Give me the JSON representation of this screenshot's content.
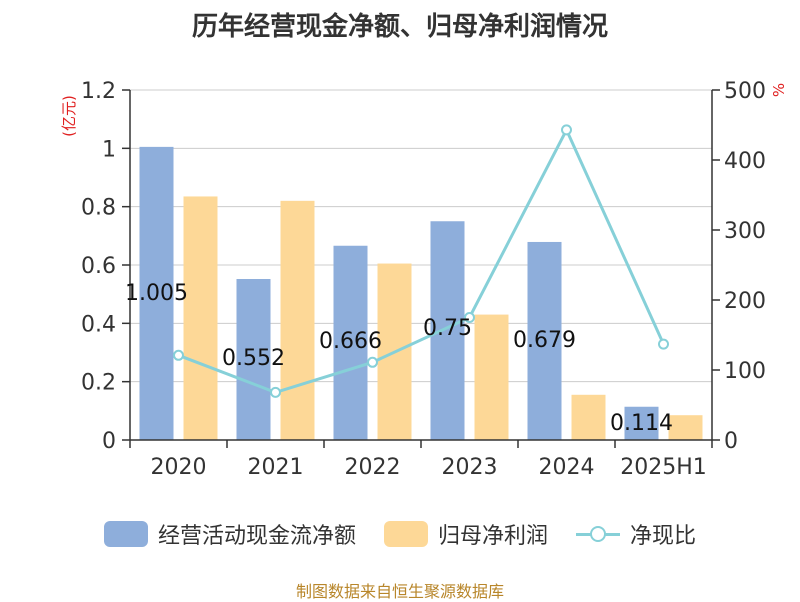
{
  "title": "历年经营现金净额、归母净利润情况",
  "source": "制图数据来自恒生聚源数据库",
  "chart_data": {
    "type": "bar",
    "categories": [
      "2020",
      "2021",
      "2022",
      "2023",
      "2024",
      "2025H1"
    ],
    "series": [
      {
        "name": "经营活动现金流净额",
        "type": "bar",
        "axis": "left",
        "color": "#8eaedb",
        "values": [
          1.005,
          0.552,
          0.666,
          0.75,
          0.679,
          0.114
        ],
        "labels": [
          "1.005",
          "0.552",
          "0.666",
          "0.75",
          "0.679",
          "0.114"
        ]
      },
      {
        "name": "归母净利润",
        "type": "bar",
        "axis": "left",
        "color": "#fdd897",
        "values": [
          0.835,
          0.82,
          0.605,
          0.43,
          0.155,
          0.085
        ]
      },
      {
        "name": "净现比",
        "type": "line",
        "axis": "right",
        "color": "#86d0d8",
        "values": [
          121,
          68,
          111,
          175,
          443,
          137
        ]
      }
    ],
    "y_left": {
      "label": "(亿元)",
      "ylim": [
        0,
        1.2
      ],
      "ticks": [
        "0",
        "0.2",
        "0.4",
        "0.6",
        "0.8",
        "1",
        "1.2"
      ]
    },
    "y_right": {
      "label": "%",
      "ylim": [
        0,
        500
      ],
      "ticks": [
        "0",
        "100",
        "200",
        "300",
        "400",
        "500"
      ]
    },
    "grid": true,
    "legend_position": "bottom"
  }
}
